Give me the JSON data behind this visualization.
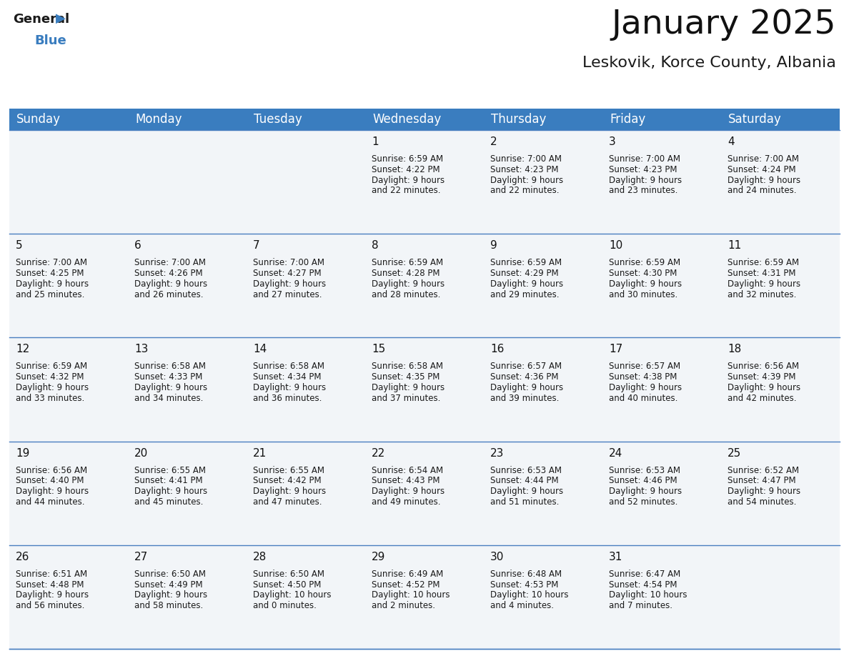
{
  "title": "January 2025",
  "subtitle": "Leskovik, Korce County, Albania",
  "header_color": "#3a7dbf",
  "header_text_color": "#ffffff",
  "cell_bg": "#f2f5f8",
  "cell_bg_white": "#ffffff",
  "separator_color": "#4a7fc0",
  "day_headers": [
    "Sunday",
    "Monday",
    "Tuesday",
    "Wednesday",
    "Thursday",
    "Friday",
    "Saturday"
  ],
  "title_fontsize": 34,
  "subtitle_fontsize": 16,
  "header_fontsize": 12,
  "day_num_fontsize": 11,
  "cell_fontsize": 8.5,
  "weeks": [
    [
      {
        "day": "",
        "sunrise": "",
        "sunset": "",
        "daylight_hrs": "",
        "daylight_min": ""
      },
      {
        "day": "",
        "sunrise": "",
        "sunset": "",
        "daylight_hrs": "",
        "daylight_min": ""
      },
      {
        "day": "",
        "sunrise": "",
        "sunset": "",
        "daylight_hrs": "",
        "daylight_min": ""
      },
      {
        "day": "1",
        "sunrise": "6:59 AM",
        "sunset": "4:22 PM",
        "daylight_hrs": "9",
        "daylight_min": "22"
      },
      {
        "day": "2",
        "sunrise": "7:00 AM",
        "sunset": "4:23 PM",
        "daylight_hrs": "9",
        "daylight_min": "22"
      },
      {
        "day": "3",
        "sunrise": "7:00 AM",
        "sunset": "4:23 PM",
        "daylight_hrs": "9",
        "daylight_min": "23"
      },
      {
        "day": "4",
        "sunrise": "7:00 AM",
        "sunset": "4:24 PM",
        "daylight_hrs": "9",
        "daylight_min": "24"
      }
    ],
    [
      {
        "day": "5",
        "sunrise": "7:00 AM",
        "sunset": "4:25 PM",
        "daylight_hrs": "9",
        "daylight_min": "25"
      },
      {
        "day": "6",
        "sunrise": "7:00 AM",
        "sunset": "4:26 PM",
        "daylight_hrs": "9",
        "daylight_min": "26"
      },
      {
        "day": "7",
        "sunrise": "7:00 AM",
        "sunset": "4:27 PM",
        "daylight_hrs": "9",
        "daylight_min": "27"
      },
      {
        "day": "8",
        "sunrise": "6:59 AM",
        "sunset": "4:28 PM",
        "daylight_hrs": "9",
        "daylight_min": "28"
      },
      {
        "day": "9",
        "sunrise": "6:59 AM",
        "sunset": "4:29 PM",
        "daylight_hrs": "9",
        "daylight_min": "29"
      },
      {
        "day": "10",
        "sunrise": "6:59 AM",
        "sunset": "4:30 PM",
        "daylight_hrs": "9",
        "daylight_min": "30"
      },
      {
        "day": "11",
        "sunrise": "6:59 AM",
        "sunset": "4:31 PM",
        "daylight_hrs": "9",
        "daylight_min": "32"
      }
    ],
    [
      {
        "day": "12",
        "sunrise": "6:59 AM",
        "sunset": "4:32 PM",
        "daylight_hrs": "9",
        "daylight_min": "33"
      },
      {
        "day": "13",
        "sunrise": "6:58 AM",
        "sunset": "4:33 PM",
        "daylight_hrs": "9",
        "daylight_min": "34"
      },
      {
        "day": "14",
        "sunrise": "6:58 AM",
        "sunset": "4:34 PM",
        "daylight_hrs": "9",
        "daylight_min": "36"
      },
      {
        "day": "15",
        "sunrise": "6:58 AM",
        "sunset": "4:35 PM",
        "daylight_hrs": "9",
        "daylight_min": "37"
      },
      {
        "day": "16",
        "sunrise": "6:57 AM",
        "sunset": "4:36 PM",
        "daylight_hrs": "9",
        "daylight_min": "39"
      },
      {
        "day": "17",
        "sunrise": "6:57 AM",
        "sunset": "4:38 PM",
        "daylight_hrs": "9",
        "daylight_min": "40"
      },
      {
        "day": "18",
        "sunrise": "6:56 AM",
        "sunset": "4:39 PM",
        "daylight_hrs": "9",
        "daylight_min": "42"
      }
    ],
    [
      {
        "day": "19",
        "sunrise": "6:56 AM",
        "sunset": "4:40 PM",
        "daylight_hrs": "9",
        "daylight_min": "44"
      },
      {
        "day": "20",
        "sunrise": "6:55 AM",
        "sunset": "4:41 PM",
        "daylight_hrs": "9",
        "daylight_min": "45"
      },
      {
        "day": "21",
        "sunrise": "6:55 AM",
        "sunset": "4:42 PM",
        "daylight_hrs": "9",
        "daylight_min": "47"
      },
      {
        "day": "22",
        "sunrise": "6:54 AM",
        "sunset": "4:43 PM",
        "daylight_hrs": "9",
        "daylight_min": "49"
      },
      {
        "day": "23",
        "sunrise": "6:53 AM",
        "sunset": "4:44 PM",
        "daylight_hrs": "9",
        "daylight_min": "51"
      },
      {
        "day": "24",
        "sunrise": "6:53 AM",
        "sunset": "4:46 PM",
        "daylight_hrs": "9",
        "daylight_min": "52"
      },
      {
        "day": "25",
        "sunrise": "6:52 AM",
        "sunset": "4:47 PM",
        "daylight_hrs": "9",
        "daylight_min": "54"
      }
    ],
    [
      {
        "day": "26",
        "sunrise": "6:51 AM",
        "sunset": "4:48 PM",
        "daylight_hrs": "9",
        "daylight_min": "56"
      },
      {
        "day": "27",
        "sunrise": "6:50 AM",
        "sunset": "4:49 PM",
        "daylight_hrs": "9",
        "daylight_min": "58"
      },
      {
        "day": "28",
        "sunrise": "6:50 AM",
        "sunset": "4:50 PM",
        "daylight_hrs": "10",
        "daylight_min": "0"
      },
      {
        "day": "29",
        "sunrise": "6:49 AM",
        "sunset": "4:52 PM",
        "daylight_hrs": "10",
        "daylight_min": "2"
      },
      {
        "day": "30",
        "sunrise": "6:48 AM",
        "sunset": "4:53 PM",
        "daylight_hrs": "10",
        "daylight_min": "4"
      },
      {
        "day": "31",
        "sunrise": "6:47 AM",
        "sunset": "4:54 PM",
        "daylight_hrs": "10",
        "daylight_min": "7"
      },
      {
        "day": "",
        "sunrise": "",
        "sunset": "",
        "daylight_hrs": "",
        "daylight_min": ""
      }
    ]
  ]
}
